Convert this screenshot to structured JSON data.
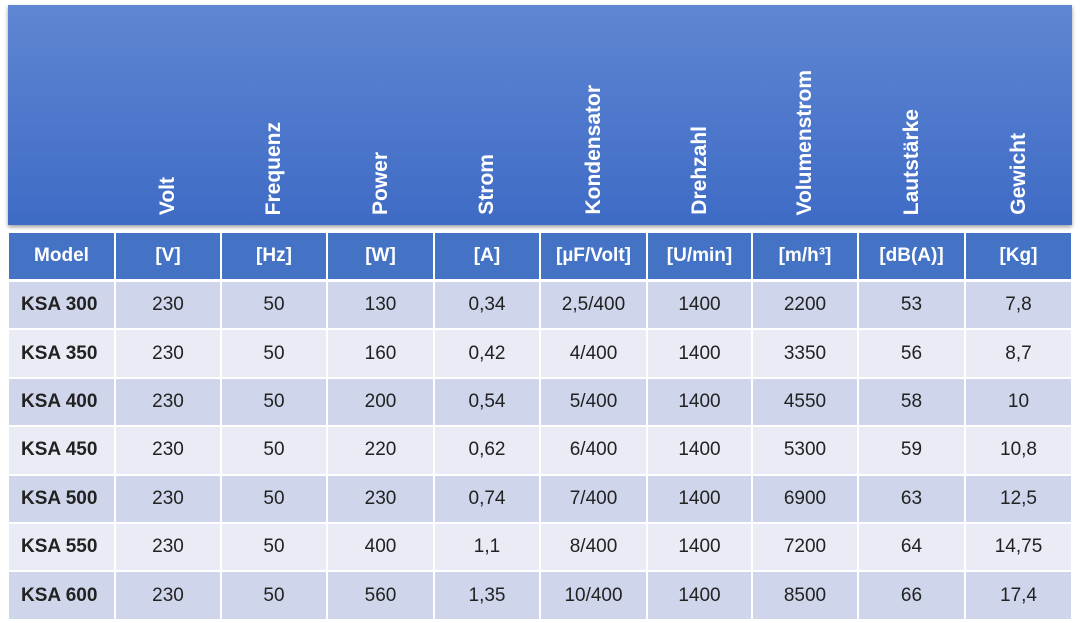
{
  "header": {
    "columns": [
      "Volt",
      "Frequenz",
      "Power",
      "Strom",
      "Kondensator",
      "Drehzahl",
      "Volumenstrom",
      "Lautstärke",
      "Gewicht"
    ]
  },
  "table": {
    "head": [
      "Model",
      "[V]",
      "[Hz]",
      "[W]",
      "[A]",
      "[µF/Volt]",
      "[U/min]",
      "[m/h³]",
      "[dB(A)]",
      "[Kg]"
    ],
    "rows": [
      [
        "KSA 300",
        "230",
        "50",
        "130",
        "0,34",
        "2,5/400",
        "1400",
        "2200",
        "53",
        "7,8"
      ],
      [
        "KSA 350",
        "230",
        "50",
        "160",
        "0,42",
        "4/400",
        "1400",
        "3350",
        "56",
        "8,7"
      ],
      [
        "KSA 400",
        "230",
        "50",
        "200",
        "0,54",
        "5/400",
        "1400",
        "4550",
        "58",
        "10"
      ],
      [
        "KSA 450",
        "230",
        "50",
        "220",
        "0,62",
        "6/400",
        "1400",
        "5300",
        "59",
        "10,8"
      ],
      [
        "KSA 500",
        "230",
        "50",
        "230",
        "0,74",
        "7/400",
        "1400",
        "6900",
        "63",
        "12,5"
      ],
      [
        "KSA 550",
        "230",
        "50",
        "400",
        "1,1",
        "8/400",
        "1400",
        "7200",
        "64",
        "14,75"
      ],
      [
        "KSA 600",
        "230",
        "50",
        "560",
        "1,35",
        "10/400",
        "1400",
        "8500",
        "66",
        "17,4"
      ]
    ]
  }
}
